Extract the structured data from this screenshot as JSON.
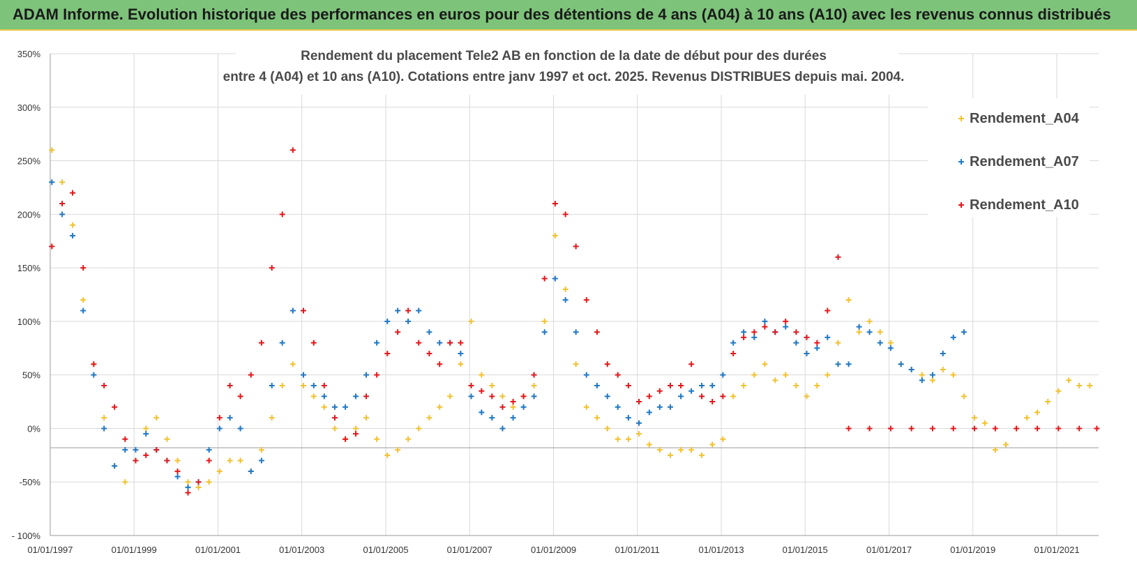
{
  "banner": {
    "text": "ADAM Informe. Evolution historique des performances en euros pour des détentions de 4 ans (A04) à 10 ans (A10) avec les revenus connus distribués"
  },
  "chart_data": {
    "type": "scatter",
    "title_line1": "Rendement du placement Tele2 AB en fonction de la date de début pour des durées",
    "title_line2": "entre 4 (A04) et 10 ans (A10). Cotations entre janv 1997 et oct. 2025. Revenus DISTRIBUES depuis mai. 2004.",
    "xlabel": "",
    "ylabel": "",
    "xlim": [
      "01/01/1997",
      "12/31/2021"
    ],
    "ylim": [
      -100,
      350
    ],
    "y_ticks": [
      "- 100%",
      "-50%",
      "0%",
      "50%",
      "100%",
      "150%",
      "200%",
      "250%",
      "300%",
      "350%"
    ],
    "y_tick_values": [
      -100,
      -50,
      0,
      50,
      100,
      150,
      200,
      250,
      300,
      350
    ],
    "x_ticks": [
      "01/01/1997",
      "01/01/1999",
      "01/01/2001",
      "01/01/2003",
      "01/01/2005",
      "01/01/2007",
      "01/01/2009",
      "01/01/2011",
      "01/01/2013",
      "01/01/2015",
      "01/01/2017",
      "01/01/2019",
      "01/01/2021"
    ],
    "grid": true,
    "legend_position": "top-right",
    "marker": "+",
    "series": [
      {
        "name": "Rendement_A04",
        "color": "#f2c12e",
        "points": [
          [
            "1997-01",
            260
          ],
          [
            "1997-04",
            230
          ],
          [
            "1997-07",
            190
          ],
          [
            "1997-10",
            120
          ],
          [
            "1998-01",
            60
          ],
          [
            "1998-04",
            10
          ],
          [
            "1998-07",
            -35
          ],
          [
            "1998-10",
            -50
          ],
          [
            "1999-01",
            -30
          ],
          [
            "1999-04",
            0
          ],
          [
            "1999-07",
            10
          ],
          [
            "1999-10",
            -10
          ],
          [
            "2000-01",
            -30
          ],
          [
            "2000-04",
            -50
          ],
          [
            "2000-07",
            -55
          ],
          [
            "2000-10",
            -50
          ],
          [
            "2001-01",
            -40
          ],
          [
            "2001-04",
            -30
          ],
          [
            "2001-07",
            -30
          ],
          [
            "2001-10",
            -40
          ],
          [
            "2002-01",
            -20
          ],
          [
            "2002-04",
            10
          ],
          [
            "2002-07",
            40
          ],
          [
            "2002-10",
            60
          ],
          [
            "2003-01",
            40
          ],
          [
            "2003-04",
            30
          ],
          [
            "2003-07",
            20
          ],
          [
            "2003-10",
            0
          ],
          [
            "2004-01",
            -10
          ],
          [
            "2004-04",
            0
          ],
          [
            "2004-07",
            10
          ],
          [
            "2004-10",
            -10
          ],
          [
            "2005-01",
            -25
          ],
          [
            "2005-04",
            -20
          ],
          [
            "2005-07",
            -10
          ],
          [
            "2005-10",
            0
          ],
          [
            "2006-01",
            10
          ],
          [
            "2006-04",
            20
          ],
          [
            "2006-07",
            30
          ],
          [
            "2006-10",
            60
          ],
          [
            "2007-01",
            100
          ],
          [
            "2007-04",
            50
          ],
          [
            "2007-07",
            40
          ],
          [
            "2007-10",
            30
          ],
          [
            "2008-01",
            20
          ],
          [
            "2008-04",
            30
          ],
          [
            "2008-07",
            40
          ],
          [
            "2008-10",
            100
          ],
          [
            "2009-01",
            180
          ],
          [
            "2009-04",
            130
          ],
          [
            "2009-07",
            60
          ],
          [
            "2009-10",
            20
          ],
          [
            "2010-01",
            10
          ],
          [
            "2010-04",
            0
          ],
          [
            "2010-07",
            -10
          ],
          [
            "2010-10",
            -10
          ],
          [
            "2011-01",
            -5
          ],
          [
            "2011-04",
            -15
          ],
          [
            "2011-07",
            -20
          ],
          [
            "2011-10",
            -25
          ],
          [
            "2012-01",
            -20
          ],
          [
            "2012-04",
            -20
          ],
          [
            "2012-07",
            -25
          ],
          [
            "2012-10",
            -15
          ],
          [
            "2013-01",
            -10
          ],
          [
            "2013-04",
            30
          ],
          [
            "2013-07",
            40
          ],
          [
            "2013-10",
            50
          ],
          [
            "2014-01",
            60
          ],
          [
            "2014-04",
            45
          ],
          [
            "2014-07",
            50
          ],
          [
            "2014-10",
            40
          ],
          [
            "2015-01",
            30
          ],
          [
            "2015-04",
            40
          ],
          [
            "2015-07",
            50
          ],
          [
            "2015-10",
            80
          ],
          [
            "2016-01",
            120
          ],
          [
            "2016-04",
            90
          ],
          [
            "2016-07",
            100
          ],
          [
            "2016-10",
            90
          ],
          [
            "2017-01",
            80
          ],
          [
            "2017-04",
            60
          ],
          [
            "2017-07",
            55
          ],
          [
            "2017-10",
            50
          ],
          [
            "2018-01",
            45
          ],
          [
            "2018-04",
            55
          ],
          [
            "2018-07",
            50
          ],
          [
            "2018-10",
            30
          ],
          [
            "2019-01",
            10
          ],
          [
            "2019-04",
            5
          ],
          [
            "2019-07",
            -20
          ],
          [
            "2019-10",
            -15
          ],
          [
            "2020-01",
            0
          ],
          [
            "2020-04",
            10
          ],
          [
            "2020-07",
            15
          ],
          [
            "2020-10",
            25
          ],
          [
            "2021-01",
            35
          ],
          [
            "2021-04",
            45
          ],
          [
            "2021-07",
            40
          ],
          [
            "2021-10",
            40
          ]
        ]
      },
      {
        "name": "Rendement_A07",
        "color": "#1f77c4",
        "points": [
          [
            "1997-01",
            230
          ],
          [
            "1997-04",
            200
          ],
          [
            "1997-07",
            180
          ],
          [
            "1997-10",
            110
          ],
          [
            "1998-01",
            50
          ],
          [
            "1998-04",
            0
          ],
          [
            "1998-07",
            -35
          ],
          [
            "1998-10",
            -20
          ],
          [
            "1999-01",
            -20
          ],
          [
            "1999-04",
            -5
          ],
          [
            "1999-07",
            -20
          ],
          [
            "1999-10",
            -30
          ],
          [
            "2000-01",
            -45
          ],
          [
            "2000-04",
            -55
          ],
          [
            "2000-07",
            -50
          ],
          [
            "2000-10",
            -20
          ],
          [
            "2001-01",
            0
          ],
          [
            "2001-04",
            10
          ],
          [
            "2001-07",
            0
          ],
          [
            "2001-10",
            -40
          ],
          [
            "2002-01",
            -30
          ],
          [
            "2002-04",
            40
          ],
          [
            "2002-07",
            80
          ],
          [
            "2002-10",
            110
          ],
          [
            "2003-01",
            50
          ],
          [
            "2003-04",
            40
          ],
          [
            "2003-07",
            30
          ],
          [
            "2003-10",
            20
          ],
          [
            "2004-01",
            20
          ],
          [
            "2004-04",
            30
          ],
          [
            "2004-07",
            50
          ],
          [
            "2004-10",
            80
          ],
          [
            "2005-01",
            100
          ],
          [
            "2005-04",
            110
          ],
          [
            "2005-07",
            100
          ],
          [
            "2005-10",
            110
          ],
          [
            "2006-01",
            90
          ],
          [
            "2006-04",
            80
          ],
          [
            "2006-07",
            80
          ],
          [
            "2006-10",
            70
          ],
          [
            "2007-01",
            30
          ],
          [
            "2007-04",
            15
          ],
          [
            "2007-07",
            10
          ],
          [
            "2007-10",
            0
          ],
          [
            "2008-01",
            10
          ],
          [
            "2008-04",
            20
          ],
          [
            "2008-07",
            30
          ],
          [
            "2008-10",
            90
          ],
          [
            "2009-01",
            140
          ],
          [
            "2009-04",
            120
          ],
          [
            "2009-07",
            90
          ],
          [
            "2009-10",
            50
          ],
          [
            "2010-01",
            40
          ],
          [
            "2010-04",
            30
          ],
          [
            "2010-07",
            20
          ],
          [
            "2010-10",
            10
          ],
          [
            "2011-01",
            5
          ],
          [
            "2011-04",
            15
          ],
          [
            "2011-07",
            20
          ],
          [
            "2011-10",
            20
          ],
          [
            "2012-01",
            30
          ],
          [
            "2012-04",
            35
          ],
          [
            "2012-07",
            40
          ],
          [
            "2012-10",
            40
          ],
          [
            "2013-01",
            50
          ],
          [
            "2013-04",
            80
          ],
          [
            "2013-07",
            90
          ],
          [
            "2013-10",
            85
          ],
          [
            "2014-01",
            100
          ],
          [
            "2014-04",
            90
          ],
          [
            "2014-07",
            95
          ],
          [
            "2014-10",
            80
          ],
          [
            "2015-01",
            70
          ],
          [
            "2015-04",
            75
          ],
          [
            "2015-07",
            85
          ],
          [
            "2015-10",
            60
          ],
          [
            "2016-01",
            60
          ],
          [
            "2016-04",
            95
          ],
          [
            "2016-07",
            90
          ],
          [
            "2016-10",
            80
          ],
          [
            "2017-01",
            75
          ],
          [
            "2017-04",
            60
          ],
          [
            "2017-07",
            55
          ],
          [
            "2017-10",
            45
          ],
          [
            "2018-01",
            50
          ],
          [
            "2018-04",
            70
          ],
          [
            "2018-07",
            85
          ],
          [
            "2018-10",
            90
          ]
        ]
      },
      {
        "name": "Rendement_A10",
        "color": "#e3171b",
        "points": [
          [
            "1997-01",
            170
          ],
          [
            "1997-04",
            210
          ],
          [
            "1997-07",
            220
          ],
          [
            "1997-10",
            150
          ],
          [
            "1998-01",
            60
          ],
          [
            "1998-04",
            40
          ],
          [
            "1998-07",
            20
          ],
          [
            "1998-10",
            -10
          ],
          [
            "1999-01",
            -30
          ],
          [
            "1999-04",
            -25
          ],
          [
            "1999-07",
            -20
          ],
          [
            "1999-10",
            -30
          ],
          [
            "2000-01",
            -40
          ],
          [
            "2000-04",
            -60
          ],
          [
            "2000-07",
            -50
          ],
          [
            "2000-10",
            -30
          ],
          [
            "2001-01",
            10
          ],
          [
            "2001-04",
            40
          ],
          [
            "2001-07",
            30
          ],
          [
            "2001-10",
            50
          ],
          [
            "2002-01",
            80
          ],
          [
            "2002-04",
            150
          ],
          [
            "2002-07",
            200
          ],
          [
            "2002-10",
            260
          ],
          [
            "2003-01",
            110
          ],
          [
            "2003-04",
            80
          ],
          [
            "2003-07",
            40
          ],
          [
            "2003-10",
            10
          ],
          [
            "2004-01",
            -10
          ],
          [
            "2004-04",
            -5
          ],
          [
            "2004-07",
            30
          ],
          [
            "2004-10",
            50
          ],
          [
            "2005-01",
            70
          ],
          [
            "2005-04",
            90
          ],
          [
            "2005-07",
            110
          ],
          [
            "2005-10",
            80
          ],
          [
            "2006-01",
            70
          ],
          [
            "2006-04",
            60
          ],
          [
            "2006-07",
            80
          ],
          [
            "2006-10",
            80
          ],
          [
            "2007-01",
            40
          ],
          [
            "2007-04",
            35
          ],
          [
            "2007-07",
            30
          ],
          [
            "2007-10",
            20
          ],
          [
            "2008-01",
            25
          ],
          [
            "2008-04",
            30
          ],
          [
            "2008-07",
            50
          ],
          [
            "2008-10",
            140
          ],
          [
            "2009-01",
            210
          ],
          [
            "2009-04",
            200
          ],
          [
            "2009-07",
            170
          ],
          [
            "2009-10",
            120
          ],
          [
            "2010-01",
            90
          ],
          [
            "2010-04",
            60
          ],
          [
            "2010-07",
            50
          ],
          [
            "2010-10",
            40
          ],
          [
            "2011-01",
            25
          ],
          [
            "2011-04",
            30
          ],
          [
            "2011-07",
            35
          ],
          [
            "2011-10",
            40
          ],
          [
            "2012-01",
            40
          ],
          [
            "2012-04",
            60
          ],
          [
            "2012-07",
            30
          ],
          [
            "2012-10",
            25
          ],
          [
            "2013-01",
            30
          ],
          [
            "2013-04",
            70
          ],
          [
            "2013-07",
            85
          ],
          [
            "2013-10",
            90
          ],
          [
            "2014-01",
            95
          ],
          [
            "2014-04",
            90
          ],
          [
            "2014-07",
            100
          ],
          [
            "2014-10",
            90
          ],
          [
            "2015-01",
            85
          ],
          [
            "2015-04",
            80
          ],
          [
            "2015-07",
            110
          ],
          [
            "2015-10",
            160
          ],
          [
            "2016-01",
            0
          ],
          [
            "2016-07",
            0
          ],
          [
            "2017-01",
            0
          ],
          [
            "2017-07",
            0
          ],
          [
            "2018-01",
            0
          ],
          [
            "2018-07",
            0
          ],
          [
            "2019-01",
            0
          ],
          [
            "2019-07",
            0
          ],
          [
            "2020-01",
            0
          ],
          [
            "2020-07",
            0
          ],
          [
            "2021-01",
            0
          ],
          [
            "2021-07",
            0
          ],
          [
            "2021-12",
            0
          ]
        ]
      }
    ]
  }
}
